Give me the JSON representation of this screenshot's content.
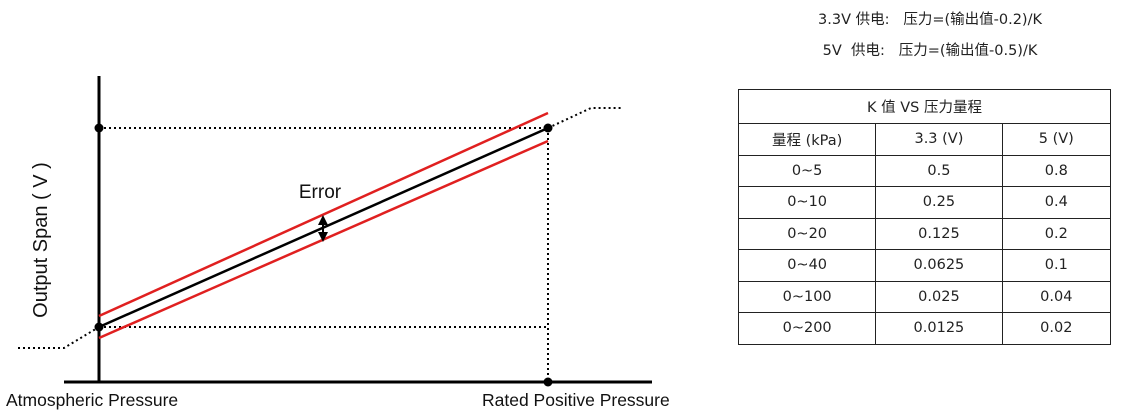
{
  "diagram": {
    "y_axis_label": "Output Span ( V )",
    "x_left_label": "Atmospheric Pressure",
    "x_right_label": "Rated Positive Pressure",
    "error_label": "Error",
    "colors": {
      "transfer_line": "#000000",
      "error_band": "#e02020",
      "guides": "#000000"
    }
  },
  "formulas": {
    "line_3v3": "3.3V 供电:   压力=(输出值-0.2)/K",
    "line_5v": "5V  供电:   压力=(输出值-0.5)/K"
  },
  "k_table": {
    "title": "K 值  VS  压力量程",
    "headers": [
      "量程  (kPa)",
      "3.3  (V)",
      "5  (V)"
    ],
    "rows": [
      [
        "0~5",
        "0.5",
        "0.8"
      ],
      [
        "0~10",
        "0.25",
        "0.4"
      ],
      [
        "0~20",
        "0.125",
        "0.2"
      ],
      [
        "0~40",
        "0.0625",
        "0.1"
      ],
      [
        "0~100",
        "0.025",
        "0.04"
      ],
      [
        "0~200",
        "0.0125",
        "0.02"
      ]
    ]
  }
}
